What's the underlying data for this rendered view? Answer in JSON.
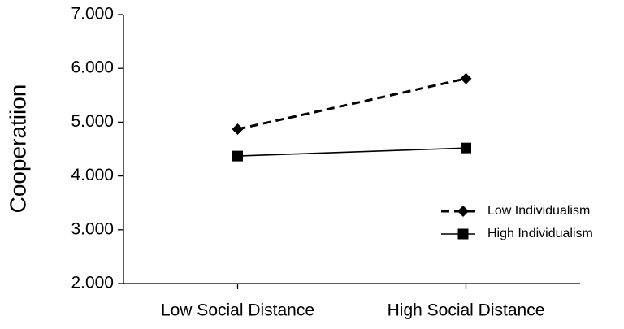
{
  "chart_data": {
    "type": "line",
    "y_label": "Cooperatiion",
    "categories": [
      "Low Social Distance",
      "High Social Distance"
    ],
    "series": [
      {
        "name": "Low Individualism",
        "color": "#000000",
        "line_style": "dashed",
        "marker": "diamond",
        "values": [
          4.87,
          5.81
        ]
      },
      {
        "name": "High Individualism",
        "color": "#000000",
        "line_style": "solid",
        "marker": "square",
        "values": [
          4.37,
          4.52
        ]
      }
    ],
    "ylim": [
      2,
      7
    ],
    "yticks": [
      {
        "value": 2,
        "label": "2.000"
      },
      {
        "value": 3,
        "label": "3.000"
      },
      {
        "value": 4,
        "label": "4.000"
      },
      {
        "value": 5,
        "label": "5.000"
      },
      {
        "value": 6,
        "label": "6.000"
      },
      {
        "value": 7,
        "label": "7.000"
      }
    ],
    "grid": false,
    "legend_position": "right"
  }
}
